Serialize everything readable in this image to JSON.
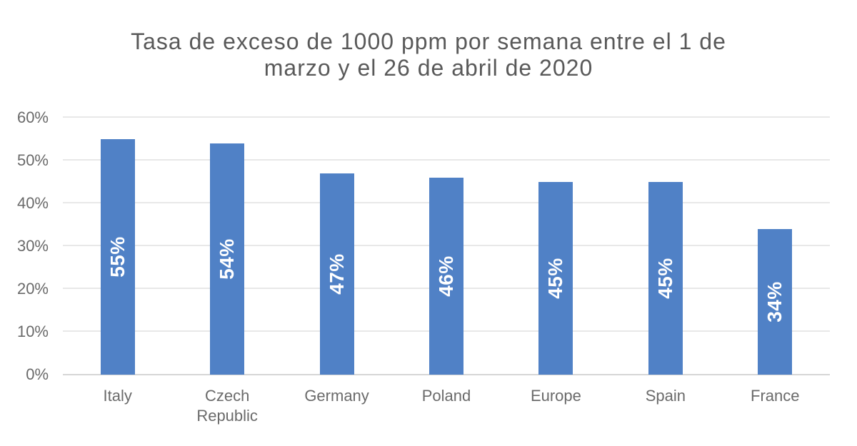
{
  "chart_data": {
    "type": "bar",
    "title": "Tasa de exceso de 1000 ppm por semana entre el 1 de marzo y el 26 de abril de 2020",
    "title_lines": [
      "Tasa de exceso de 1000 ppm por semana entre el 1 de",
      "marzo y el 26 de abril de 2020"
    ],
    "categories": [
      "Italy",
      "Czech\nRepublic",
      "Germany",
      "Poland",
      "Europe",
      "Spain",
      "France"
    ],
    "values": [
      55,
      54,
      47,
      46,
      45,
      45,
      34
    ],
    "data_labels": [
      "55%",
      "54%",
      "47%",
      "46%",
      "45%",
      "45%",
      "34%"
    ],
    "xlabel": "",
    "ylabel": "",
    "ylim": [
      0,
      60
    ],
    "y_ticks": [
      0,
      10,
      20,
      30,
      40,
      50,
      60
    ],
    "y_tick_labels": [
      "0%",
      "10%",
      "20%",
      "30%",
      "40%",
      "50%",
      "60%"
    ],
    "grid": true,
    "legend": false,
    "colors": {
      "bar": "#5081c6",
      "bar_label": "#ffffff",
      "title": "#595959",
      "tick_text": "#6a6a6a",
      "gridline": "#e8e8e8",
      "axis_line": "#d6d6d6"
    }
  }
}
